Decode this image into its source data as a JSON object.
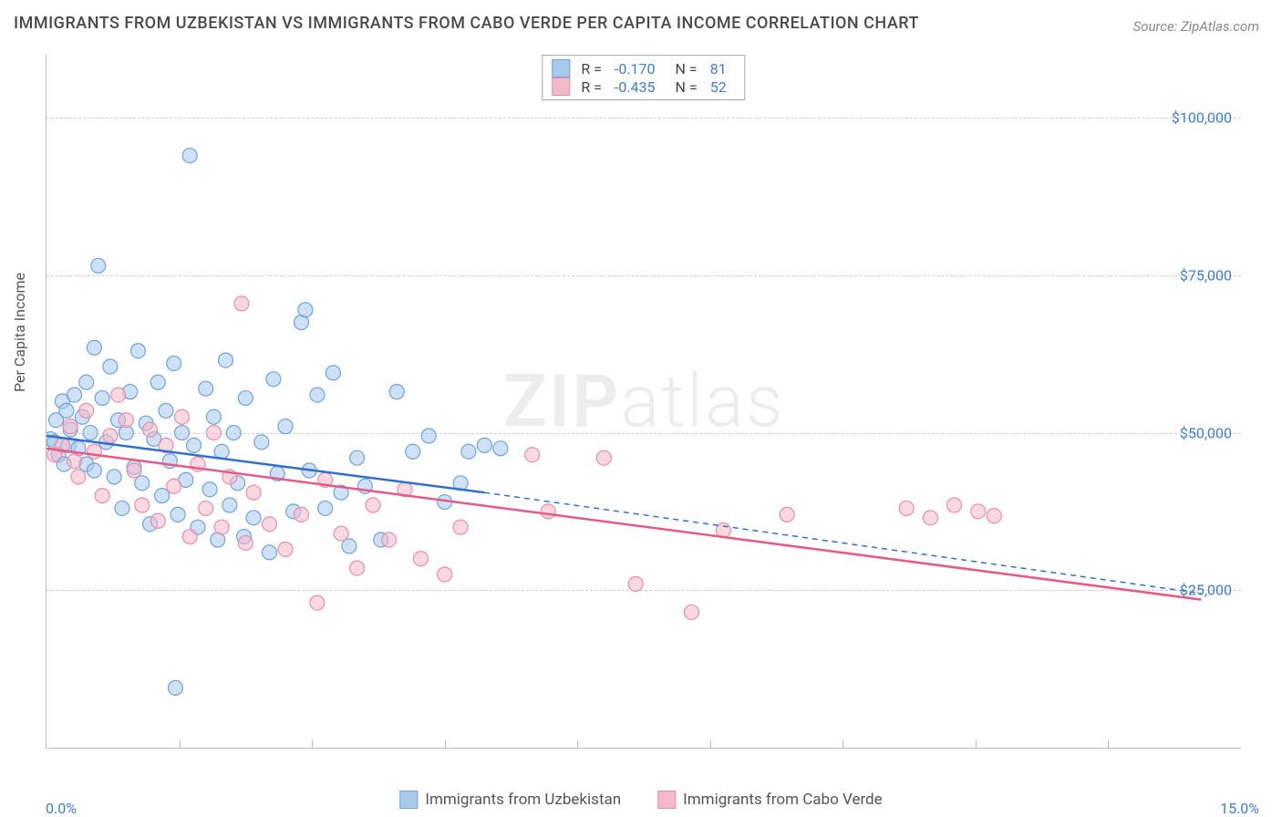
{
  "title": "IMMIGRANTS FROM UZBEKISTAN VS IMMIGRANTS FROM CABO VERDE PER CAPITA INCOME CORRELATION CHART",
  "source": "Source: ZipAtlas.com",
  "watermark": "ZIPatlas",
  "ylabel": "Per Capita Income",
  "chart": {
    "type": "scatter",
    "xlim": [
      0.0,
      15.0
    ],
    "ylim": [
      0,
      110000
    ],
    "xtick_labels": {
      "start": "0.0%",
      "end": "15.0%"
    },
    "xtick_minor_count": 8,
    "ytick_values": [
      25000,
      50000,
      75000,
      100000
    ],
    "ytick_labels": [
      "$25,000",
      "$50,000",
      "$75,000",
      "$100,000"
    ],
    "grid_color": "#cccccc",
    "background_color": "#ffffff",
    "text_color": "#555555",
    "tick_text_color": "#3b7dd8",
    "title_fontsize": 18,
    "label_fontsize": 16
  },
  "series": [
    {
      "name": "Immigrants from Uzbekistan",
      "fill_color": "#a8c8ec",
      "stroke_color": "#6fa3de",
      "line_color": "#2f6fd0",
      "marker_radius": 8,
      "fill_opacity": 0.55,
      "R": "-0.170",
      "N": "81",
      "regression": {
        "x1": 0.0,
        "y1": 49500,
        "x2_solid": 5.5,
        "y2_solid": 40500,
        "x2_dash": 14.5,
        "y2_dash": 24500
      },
      "points": [
        [
          0.05,
          49000
        ],
        [
          0.1,
          48500
        ],
        [
          0.12,
          52000
        ],
        [
          0.15,
          46500
        ],
        [
          0.2,
          55000
        ],
        [
          0.22,
          45000
        ],
        [
          0.25,
          53500
        ],
        [
          0.28,
          48000
        ],
        [
          0.3,
          50500
        ],
        [
          0.35,
          56000
        ],
        [
          0.4,
          47500
        ],
        [
          0.45,
          52500
        ],
        [
          0.5,
          45000
        ],
        [
          0.5,
          58000
        ],
        [
          0.55,
          50000
        ],
        [
          0.6,
          63500
        ],
        [
          0.6,
          44000
        ],
        [
          0.65,
          76500
        ],
        [
          0.7,
          55500
        ],
        [
          0.75,
          48500
        ],
        [
          0.8,
          60500
        ],
        [
          0.85,
          43000
        ],
        [
          0.9,
          52000
        ],
        [
          0.95,
          38000
        ],
        [
          1.0,
          50000
        ],
        [
          1.05,
          56500
        ],
        [
          1.1,
          44500
        ],
        [
          1.15,
          63000
        ],
        [
          1.2,
          42000
        ],
        [
          1.25,
          51500
        ],
        [
          1.3,
          35500
        ],
        [
          1.35,
          49000
        ],
        [
          1.4,
          58000
        ],
        [
          1.45,
          40000
        ],
        [
          1.5,
          53500
        ],
        [
          1.55,
          45500
        ],
        [
          1.6,
          61000
        ],
        [
          1.62,
          9500
        ],
        [
          1.65,
          37000
        ],
        [
          1.7,
          50000
        ],
        [
          1.75,
          42500
        ],
        [
          1.8,
          94000
        ],
        [
          1.85,
          48000
        ],
        [
          1.9,
          35000
        ],
        [
          2.0,
          57000
        ],
        [
          2.05,
          41000
        ],
        [
          2.1,
          52500
        ],
        [
          2.15,
          33000
        ],
        [
          2.2,
          47000
        ],
        [
          2.25,
          61500
        ],
        [
          2.3,
          38500
        ],
        [
          2.35,
          50000
        ],
        [
          2.4,
          42000
        ],
        [
          2.48,
          33500
        ],
        [
          2.5,
          55500
        ],
        [
          2.6,
          36500
        ],
        [
          2.7,
          48500
        ],
        [
          2.8,
          31000
        ],
        [
          2.85,
          58500
        ],
        [
          2.9,
          43500
        ],
        [
          3.0,
          51000
        ],
        [
          3.1,
          37500
        ],
        [
          3.2,
          67500
        ],
        [
          3.25,
          69500
        ],
        [
          3.3,
          44000
        ],
        [
          3.4,
          56000
        ],
        [
          3.5,
          38000
        ],
        [
          3.6,
          59500
        ],
        [
          3.7,
          40500
        ],
        [
          3.8,
          32000
        ],
        [
          3.9,
          46000
        ],
        [
          4.0,
          41500
        ],
        [
          4.2,
          33000
        ],
        [
          4.4,
          56500
        ],
        [
          4.6,
          47000
        ],
        [
          4.8,
          49500
        ],
        [
          5.0,
          39000
        ],
        [
          5.2,
          42000
        ],
        [
          5.3,
          47000
        ],
        [
          5.5,
          48000
        ],
        [
          5.7,
          47500
        ]
      ]
    },
    {
      "name": "Immigrants from Cabo Verde",
      "fill_color": "#f5b8c9",
      "stroke_color": "#e88fa8",
      "line_color": "#e65a8a",
      "marker_radius": 8,
      "fill_opacity": 0.55,
      "R": "-0.435",
      "N": "52",
      "regression": {
        "x1": 0.0,
        "y1": 47500,
        "x2_solid": 14.5,
        "y2_solid": 23500,
        "x2_dash": 14.5,
        "y2_dash": 23500
      },
      "points": [
        [
          0.1,
          46500
        ],
        [
          0.2,
          48000
        ],
        [
          0.3,
          51000
        ],
        [
          0.35,
          45500
        ],
        [
          0.4,
          43000
        ],
        [
          0.5,
          53500
        ],
        [
          0.6,
          47000
        ],
        [
          0.7,
          40000
        ],
        [
          0.8,
          49500
        ],
        [
          0.9,
          56000
        ],
        [
          1.0,
          52000
        ],
        [
          1.1,
          44000
        ],
        [
          1.2,
          38500
        ],
        [
          1.3,
          50500
        ],
        [
          1.4,
          36000
        ],
        [
          1.5,
          48000
        ],
        [
          1.6,
          41500
        ],
        [
          1.7,
          52500
        ],
        [
          1.8,
          33500
        ],
        [
          1.9,
          45000
        ],
        [
          2.0,
          38000
        ],
        [
          2.1,
          50000
        ],
        [
          2.2,
          35000
        ],
        [
          2.3,
          43000
        ],
        [
          2.45,
          70500
        ],
        [
          2.5,
          32500
        ],
        [
          2.6,
          40500
        ],
        [
          2.8,
          35500
        ],
        [
          3.0,
          31500
        ],
        [
          3.2,
          37000
        ],
        [
          3.4,
          23000
        ],
        [
          3.5,
          42500
        ],
        [
          3.7,
          34000
        ],
        [
          3.9,
          28500
        ],
        [
          4.1,
          38500
        ],
        [
          4.3,
          33000
        ],
        [
          4.5,
          41000
        ],
        [
          4.7,
          30000
        ],
        [
          5.0,
          27500
        ],
        [
          5.2,
          35000
        ],
        [
          6.1,
          46500
        ],
        [
          6.3,
          37500
        ],
        [
          7.0,
          46000
        ],
        [
          7.4,
          26000
        ],
        [
          8.1,
          21500
        ],
        [
          8.5,
          34500
        ],
        [
          9.3,
          37000
        ],
        [
          10.8,
          38000
        ],
        [
          11.1,
          36500
        ],
        [
          11.4,
          38500
        ],
        [
          11.7,
          37500
        ],
        [
          11.9,
          36800
        ]
      ]
    }
  ]
}
